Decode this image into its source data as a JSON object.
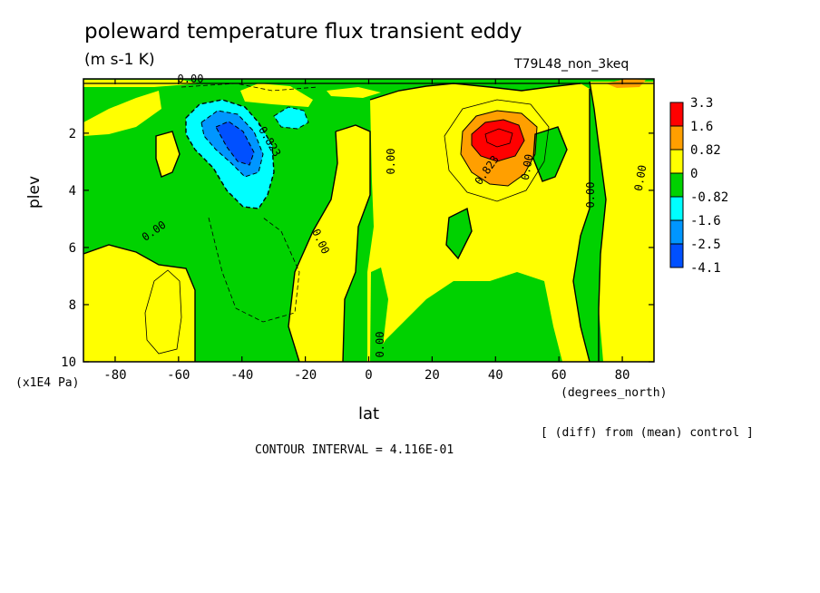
{
  "header": {
    "title": "poleward temperature flux transient eddy",
    "units": "(m s-1 K)",
    "run_name": "T79L48_non_3keq"
  },
  "footer": {
    "x_units": "(degrees_north)",
    "y_units": "(x1E4 Pa)",
    "diff_note": "[ (diff) from (mean) control ]",
    "contour_interval": "CONTOUR INTERVAL = 4.116E-01"
  },
  "chart_data": {
    "type": "heatmap",
    "title": "poleward temperature flux transient eddy",
    "xlabel": "lat",
    "ylabel": "plev",
    "xlim": [
      -90,
      90
    ],
    "ylim": [
      10,
      0.1
    ],
    "y_inverted": true,
    "xticks": [
      -80,
      -60,
      -40,
      -20,
      0,
      20,
      40,
      60,
      80
    ],
    "yticks": [
      2,
      4,
      6,
      8,
      10
    ],
    "colorbar": {
      "labels": [
        "3.3",
        "1.6",
        "0.82",
        "0",
        "-0.82",
        "-1.6",
        "-2.5",
        "-4.1"
      ],
      "colors": [
        "#ff0000",
        "#ff9f00",
        "#ffff00",
        "#00d200",
        "#00ffff",
        "#0096ff",
        "#0050ff"
      ]
    },
    "contour_labels": [
      "0.00",
      "0.00",
      "0.00",
      "0.00",
      "0.00",
      "0.00",
      "0.00",
      "0.00",
      "-0.823",
      "0.823"
    ],
    "features": [
      {
        "name": "negative flux maximum",
        "lat": -40,
        "plev": 2.5,
        "value": -4.1
      },
      {
        "name": "secondary negative flux",
        "lat": -22,
        "plev": 1.5,
        "value": -1.6
      },
      {
        "name": "positive flux maximum",
        "lat": 42,
        "plev": 2.1,
        "value": 3.3
      },
      {
        "name": "positive flux near north pole top",
        "lat": 85,
        "plev": 0.2,
        "value": 1.6
      }
    ],
    "grid": false,
    "legend": "right"
  },
  "colors": {
    "green": "#00d200",
    "yellow": "#ffff00",
    "orange": "#ff9f00",
    "red": "#ff0000",
    "cyan": "#00ffff",
    "blue1": "#0096ff",
    "blue2": "#0050ff"
  }
}
